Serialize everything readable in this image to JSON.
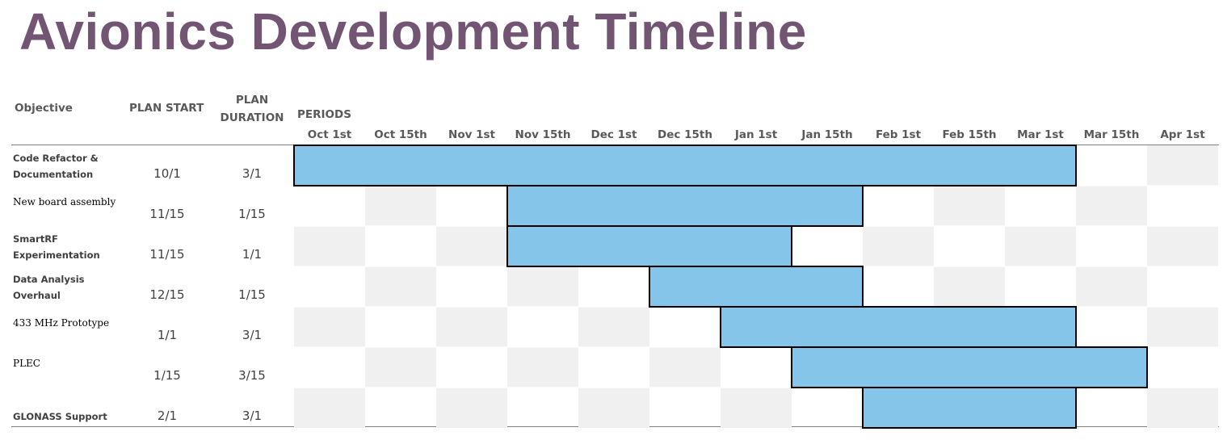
{
  "title": "Avionics Development Timeline",
  "headers": {
    "objective": "Objective",
    "plan_start": "PLAN START",
    "plan_duration_line1": "PLAN",
    "plan_duration_line2": "DURATION",
    "periods": "PERIODS"
  },
  "colors": {
    "title": "#725573",
    "bar": "#86C5EA",
    "shade": "#F0F0F0"
  },
  "chart_data": {
    "type": "gantt",
    "title": "Avionics Development Timeline",
    "periods": [
      "Oct 1st",
      "Oct 15th",
      "Nov 1st",
      "Nov 15th",
      "Dec 1st",
      "Dec 15th",
      "Jan 1st",
      "Jan 15th",
      "Feb 1st",
      "Feb 15th",
      "Mar 1st",
      "Mar 15th",
      "Apr 1st"
    ],
    "tasks": [
      {
        "objective_line1": "Code Refactor &",
        "objective_line2": "Documentation",
        "style": "bold",
        "plan_start": "10/1",
        "plan_duration": "3/1",
        "start_period": 0,
        "end_period": 11
      },
      {
        "objective_line1": "New board assembly",
        "objective_line2": "",
        "style": "serif",
        "plan_start": "11/15",
        "plan_duration": "1/15",
        "start_period": 3,
        "end_period": 8
      },
      {
        "objective_line1": "SmartRF",
        "objective_line2": "Experimentation",
        "style": "bold",
        "plan_start": "11/15",
        "plan_duration": "1/1",
        "start_period": 3,
        "end_period": 7
      },
      {
        "objective_line1": "Data Analysis",
        "objective_line2": "Overhaul",
        "style": "bold",
        "plan_start": "12/15",
        "plan_duration": "1/15",
        "start_period": 5,
        "end_period": 8
      },
      {
        "objective_line1": "433 MHz Prototype",
        "objective_line2": "",
        "style": "serif",
        "plan_start": "1/1",
        "plan_duration": "3/1",
        "start_period": 6,
        "end_period": 11
      },
      {
        "objective_line1": "PLEC",
        "objective_line2": "",
        "style": "serif",
        "plan_start": "1/15",
        "plan_duration": "3/15",
        "start_period": 7,
        "end_period": 12
      },
      {
        "objective_line1": "GLONASS Support",
        "objective_line2": "",
        "style": "bold",
        "plan_start": "2/1",
        "plan_duration": "3/1",
        "start_period": 8,
        "end_period": 11
      }
    ]
  }
}
